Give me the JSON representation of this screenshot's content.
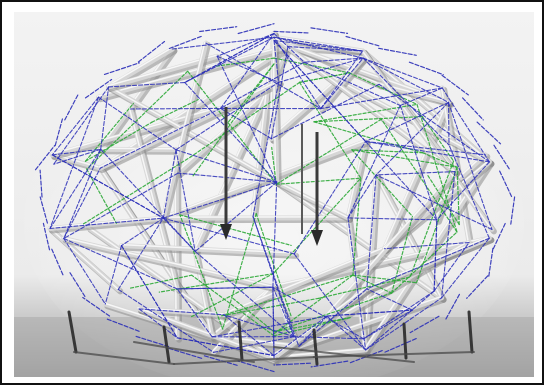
{
  "image": {
    "subject": "tensegrity-sphere-wireframe",
    "colors": {
      "background_top": "#f2f2f2",
      "background_mid": "#e9e9e9",
      "floor": "#a6a6a6",
      "strut": "#d8d8d8",
      "strut_shadow": "#8d8d8d",
      "blue_cable": "#2b2fb8",
      "green_cable": "#2faa3a",
      "dark_leg": "#2a2a2a",
      "frame_border": "#111111"
    }
  }
}
